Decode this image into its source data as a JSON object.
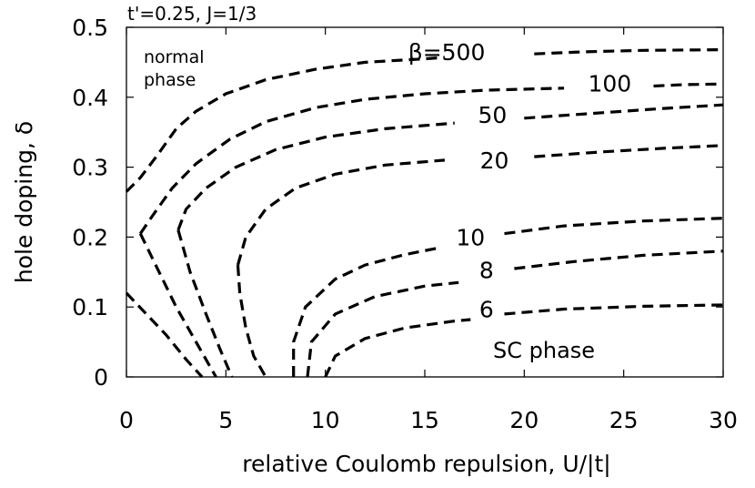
{
  "chart_data": {
    "type": "line",
    "subtitle": "t'=0.25, J=1/3",
    "xlabel": "relative Coulomb repulsion, U/|t|",
    "ylabel": "hole doping, δ",
    "xlim": [
      0,
      30
    ],
    "ylim": [
      0,
      0.5
    ],
    "xticks": [
      0,
      5,
      10,
      15,
      20,
      25,
      30
    ],
    "yticks": [
      0,
      0.1,
      0.2,
      0.3,
      0.4,
      0.5
    ],
    "xtick_labels": [
      "0",
      "5",
      "10",
      "15",
      "20",
      "25",
      "30"
    ],
    "ytick_labels": [
      "0",
      "0.1",
      "0.2",
      "0.3",
      "0.4",
      "0.5"
    ],
    "grid": false,
    "line_style": "dashed",
    "region_labels": {
      "normal": [
        "normal",
        "phase"
      ],
      "sc": "SC phase"
    },
    "series": [
      {
        "name": "β=500",
        "label_at": [
          16.1,
          0.465
        ],
        "points": [
          [
            0.0,
            0.265
          ],
          [
            0.7,
            0.285
          ],
          [
            1.5,
            0.315
          ],
          [
            2.5,
            0.355
          ],
          [
            3.5,
            0.38
          ],
          [
            5.0,
            0.405
          ],
          [
            7.0,
            0.425
          ],
          [
            9.5,
            0.44
          ],
          [
            12.0,
            0.45
          ],
          [
            15.0,
            0.455
          ],
          [
            16.0,
            0.457
          ]
        ],
        "points2": [
          [
            20.5,
            0.462
          ],
          [
            23.0,
            0.465
          ],
          [
            26.0,
            0.467
          ],
          [
            30.0,
            0.468
          ]
        ]
      },
      {
        "name": "100",
        "label_at": [
          24.3,
          0.42
        ],
        "points": [
          [
            0.0,
            0.12
          ],
          [
            0.5,
            0.105
          ],
          [
            2.0,
            0.06
          ],
          [
            3.0,
            0.025
          ],
          [
            3.8,
            0.0
          ]
        ],
        "points2": [
          [
            0.7,
            0.205
          ],
          [
            1.3,
            0.23
          ],
          [
            2.3,
            0.27
          ],
          [
            3.5,
            0.305
          ],
          [
            5.2,
            0.34
          ],
          [
            7.0,
            0.365
          ],
          [
            9.5,
            0.385
          ],
          [
            12.0,
            0.397
          ],
          [
            15.0,
            0.405
          ],
          [
            18.0,
            0.41
          ],
          [
            22.0,
            0.413
          ]
        ],
        "points3": [
          [
            26.5,
            0.416
          ],
          [
            28.0,
            0.418
          ],
          [
            30.0,
            0.419
          ]
        ]
      },
      {
        "name": "50",
        "label_at": [
          18.4,
          0.375
        ],
        "points": [
          [
            0.7,
            0.205
          ],
          [
            1.3,
            0.17
          ],
          [
            2.5,
            0.1
          ],
          [
            3.5,
            0.05
          ],
          [
            4.5,
            0.0
          ]
        ],
        "points2": [
          [
            2.6,
            0.21
          ],
          [
            3.0,
            0.24
          ],
          [
            4.0,
            0.27
          ],
          [
            5.5,
            0.3
          ],
          [
            7.5,
            0.325
          ],
          [
            10.0,
            0.343
          ],
          [
            13.0,
            0.355
          ],
          [
            16.5,
            0.363
          ]
        ],
        "points3": [
          [
            20.0,
            0.37
          ],
          [
            24.0,
            0.378
          ],
          [
            27.0,
            0.384
          ],
          [
            30.0,
            0.389
          ]
        ]
      },
      {
        "name": "20",
        "label_at": [
          18.5,
          0.31
        ],
        "points": [
          [
            2.6,
            0.21
          ],
          [
            3.2,
            0.15
          ],
          [
            4.0,
            0.09
          ],
          [
            4.7,
            0.04
          ],
          [
            5.3,
            0.0
          ]
        ],
        "points2": [
          [
            5.6,
            0.16
          ],
          [
            6.0,
            0.2
          ],
          [
            7.0,
            0.24
          ],
          [
            8.5,
            0.27
          ],
          [
            10.5,
            0.29
          ],
          [
            13.0,
            0.303
          ],
          [
            16.0,
            0.31
          ]
        ],
        "points3": [
          [
            20.5,
            0.315
          ],
          [
            24.0,
            0.322
          ],
          [
            27.0,
            0.327
          ],
          [
            30.0,
            0.331
          ]
        ]
      },
      {
        "name": "10",
        "label_at": [
          17.3,
          0.2
        ],
        "points": [
          [
            5.6,
            0.16
          ],
          [
            5.7,
            0.12
          ],
          [
            6.0,
            0.07
          ],
          [
            6.4,
            0.03
          ],
          [
            7.0,
            0.0
          ]
        ],
        "points2": [
          [
            8.4,
            0.0
          ],
          [
            8.4,
            0.05
          ],
          [
            9.0,
            0.1
          ],
          [
            10.5,
            0.14
          ],
          [
            12.0,
            0.16
          ],
          [
            14.0,
            0.175
          ],
          [
            15.8,
            0.185
          ]
        ],
        "points3": [
          [
            19.0,
            0.205
          ],
          [
            22.0,
            0.216
          ],
          [
            26.0,
            0.223
          ],
          [
            30.0,
            0.227
          ]
        ]
      },
      {
        "name": "8",
        "label_at": [
          18.1,
          0.153
        ],
        "points": [
          [
            9.1,
            0.0
          ],
          [
            9.3,
            0.05
          ],
          [
            10.5,
            0.09
          ],
          [
            12.5,
            0.115
          ],
          [
            15.0,
            0.13
          ],
          [
            16.7,
            0.135
          ]
        ],
        "points2": [
          [
            19.5,
            0.155
          ],
          [
            22.5,
            0.165
          ],
          [
            26.0,
            0.174
          ],
          [
            30.0,
            0.18
          ]
        ]
      },
      {
        "name": "6",
        "label_at": [
          18.1,
          0.097
        ],
        "points": [
          [
            10.0,
            0.0
          ],
          [
            10.5,
            0.03
          ],
          [
            12.0,
            0.055
          ],
          [
            14.0,
            0.07
          ],
          [
            16.5,
            0.08
          ],
          [
            17.3,
            0.082
          ]
        ],
        "points2": [
          [
            19.0,
            0.09
          ],
          [
            22.0,
            0.097
          ],
          [
            26.0,
            0.101
          ],
          [
            30.0,
            0.103
          ]
        ]
      }
    ]
  }
}
